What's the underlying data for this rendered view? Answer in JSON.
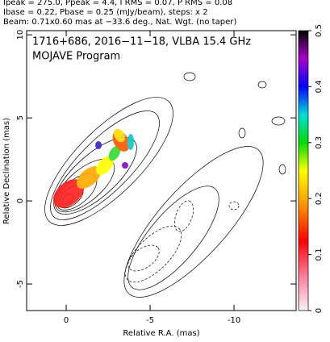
{
  "chart_data": {
    "type": "contour",
    "header": [
      "Ipeak = 275.0, Ppeak = 4.4, I RMS = 0.07, P RMS = 0.08",
      "Ibase = 0.22, Pbase = 0.25 (mJy/beam), steps: x 2",
      "Beam: 0.71x0.60 mas at −33.6 deg., Nat. Wgt. (no taper)"
    ],
    "title": "1716+686, 2016−11−18, VLBA 15.4 GHz",
    "subtitle": "MOJAVE Program",
    "x_label": "Relative R.A. (mas)",
    "y_label": "Relative Declination (mas)",
    "xlim": [
      2.36,
      -13.7
    ],
    "xticks": [
      0,
      -5,
      -10
    ],
    "ylim": [
      -6.6,
      10.25
    ],
    "yticks": [
      -5,
      0,
      5,
      10
    ],
    "colorbar_lim": [
      0,
      0.5
    ],
    "colorbar_ticks": [
      0,
      0.1,
      0.2,
      0.3,
      0.4,
      0.5
    ]
  }
}
